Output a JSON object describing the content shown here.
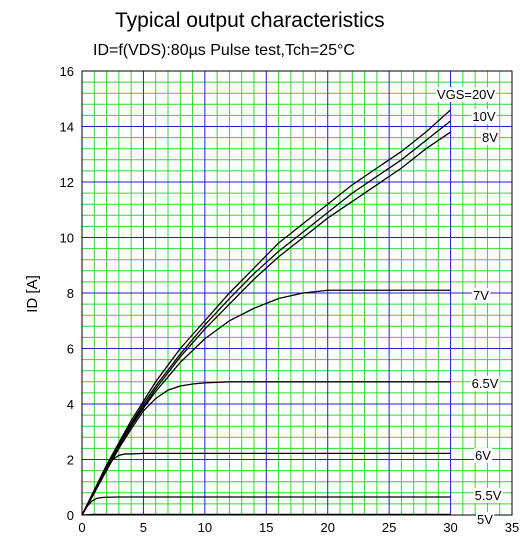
{
  "chart_data": {
    "type": "line",
    "title": "Typical output characteristics",
    "subtitle": "ID=f(VDS):80µs Pulse test,Tch=25°C",
    "xlabel": "",
    "ylabel": "ID [A]",
    "xlim": [
      0,
      35
    ],
    "ylim": [
      0,
      16
    ],
    "xticks": [
      "0",
      "5",
      "10",
      "15",
      "20",
      "25",
      "30",
      "35"
    ],
    "yticks": [
      "0",
      "2",
      "4",
      "6",
      "8",
      "10",
      "12",
      "14",
      "16"
    ],
    "grid": true,
    "legend": "none",
    "colors": {
      "major_grid": "#1f1fd6",
      "minor_grid": "#33d633",
      "curve": "#000000"
    },
    "series": [
      {
        "label": "VGS=20V",
        "x": [
          0,
          1,
          2,
          3,
          4,
          5,
          6,
          8,
          10,
          12,
          14,
          16,
          18,
          20,
          22,
          24,
          26,
          28,
          30
        ],
        "y": [
          0,
          0.9,
          1.8,
          2.6,
          3.4,
          4.1,
          4.8,
          6.0,
          7.0,
          8.0,
          8.9,
          9.8,
          10.5,
          11.2,
          11.9,
          12.5,
          13.1,
          13.8,
          14.6
        ]
      },
      {
        "label": "10V",
        "x": [
          0,
          1,
          2,
          3,
          4,
          5,
          6,
          8,
          10,
          12,
          14,
          16,
          18,
          20,
          22,
          24,
          26,
          28,
          30
        ],
        "y": [
          0,
          0.85,
          1.75,
          2.55,
          3.3,
          4.0,
          4.65,
          5.8,
          6.85,
          7.8,
          8.7,
          9.5,
          10.2,
          10.9,
          11.6,
          12.2,
          12.8,
          13.5,
          14.2
        ]
      },
      {
        "label": "8V",
        "x": [
          0,
          1,
          2,
          3,
          4,
          5,
          6,
          8,
          10,
          12,
          14,
          16,
          18,
          20,
          22,
          24,
          26,
          28,
          30
        ],
        "y": [
          0,
          0.8,
          1.7,
          2.5,
          3.25,
          3.9,
          4.55,
          5.7,
          6.7,
          7.6,
          8.5,
          9.3,
          10.0,
          10.7,
          11.3,
          11.9,
          12.5,
          13.2,
          13.8
        ]
      },
      {
        "label": "7V",
        "x": [
          0,
          1,
          2,
          3,
          4,
          5,
          6,
          8,
          10,
          12,
          14,
          16,
          18,
          20,
          22,
          24,
          26,
          28,
          30
        ],
        "y": [
          0,
          0.8,
          1.65,
          2.45,
          3.2,
          3.85,
          4.45,
          5.5,
          6.35,
          7.0,
          7.45,
          7.8,
          8.0,
          8.1,
          8.1,
          8.1,
          8.1,
          8.1,
          8.1
        ]
      },
      {
        "label": "6.5V",
        "x": [
          0,
          1,
          2,
          3,
          4,
          5,
          6,
          7,
          8,
          9,
          10,
          11,
          12,
          15,
          20,
          25,
          30
        ],
        "y": [
          0,
          0.8,
          1.6,
          2.4,
          3.1,
          3.75,
          4.2,
          4.5,
          4.65,
          4.72,
          4.76,
          4.78,
          4.8,
          4.8,
          4.8,
          4.8,
          4.8
        ]
      },
      {
        "label": "6V",
        "x": [
          0,
          0.5,
          1,
          1.5,
          2,
          2.5,
          3,
          3.5,
          4,
          5,
          6,
          10,
          20,
          30
        ],
        "y": [
          0,
          0.4,
          0.85,
          1.3,
          1.7,
          2.0,
          2.15,
          2.2,
          2.2,
          2.22,
          2.22,
          2.22,
          2.22,
          2.22
        ]
      },
      {
        "label": "5.5V",
        "x": [
          0,
          0.4,
          0.8,
          1.2,
          1.6,
          2,
          3,
          5,
          10,
          20,
          30
        ],
        "y": [
          0,
          0.3,
          0.5,
          0.6,
          0.63,
          0.64,
          0.65,
          0.65,
          0.65,
          0.65,
          0.65
        ]
      },
      {
        "label": "5V",
        "x": [
          0,
          1,
          5,
          10,
          20,
          30
        ],
        "y": [
          0,
          0.02,
          0.02,
          0.02,
          0.02,
          0.02
        ]
      }
    ]
  }
}
